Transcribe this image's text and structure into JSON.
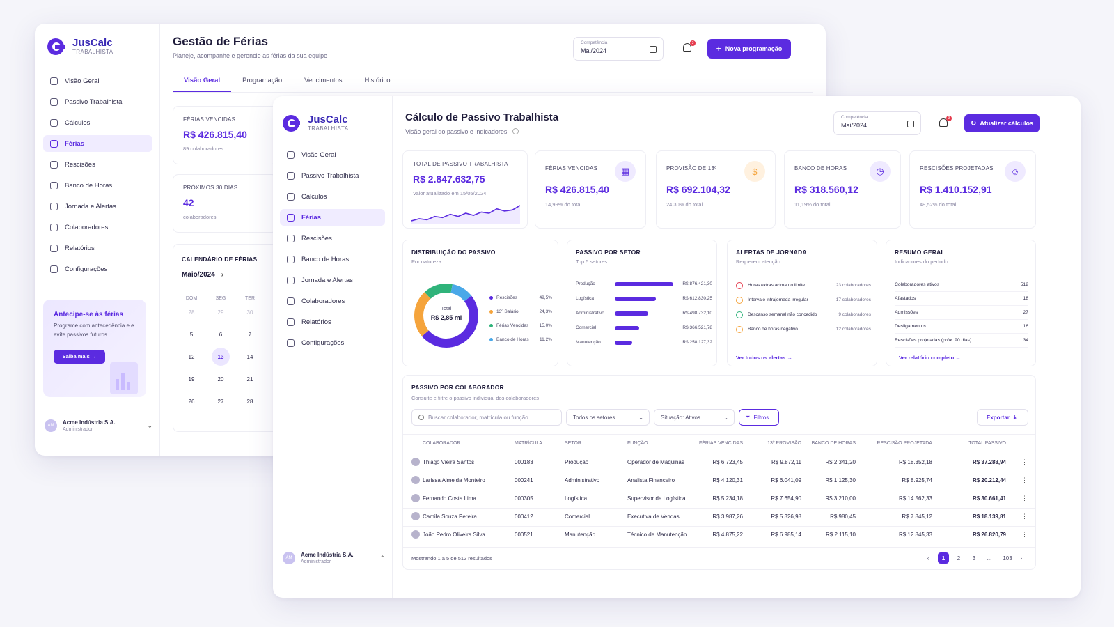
{
  "brand": {
    "name": "JusCalc",
    "sub": "TRABALHISTA"
  },
  "colors": {
    "accent": "#5b2be0",
    "orange": "#f5a43c",
    "green": "#2fb37a",
    "blue": "#4aa8e8",
    "red": "#e53a4c"
  },
  "back": {
    "nav": [
      "Visão Geral",
      "Passivo Trabalhista",
      "Cálculos",
      "Férias",
      "Rescisões",
      "Banco de Horas",
      "Jornada e Alertas",
      "Colaboradores",
      "Relatórios",
      "Configurações"
    ],
    "title": "Gestão de Férias",
    "subtitle": "Planeje, acompanhe e gerencie as férias da sua equipe",
    "competencia_label": "Competência",
    "competencia_value": "Mai/2024",
    "notif_count": "3",
    "new_button": "Nova programação",
    "tabs": [
      "Visão Geral",
      "Programação",
      "Vencimentos",
      "Histórico"
    ],
    "kpi1": {
      "label": "FÉRIAS VENCIDAS",
      "value": "R$ 426.815,40",
      "sub": "89 colaboradores"
    },
    "kpi2": {
      "label": "PRÓXIMOS 30 DIAS",
      "value": "42",
      "sub": "colaboradores"
    },
    "calendar": {
      "title": "CALENDÁRIO DE FÉRIAS",
      "month": "Maio/2024",
      "heads": [
        "DOM",
        "SEG",
        "TER"
      ],
      "rows": [
        [
          "28",
          "29",
          "30"
        ],
        [
          "5",
          "6",
          "7"
        ],
        [
          "12",
          "13",
          "14"
        ],
        [
          "19",
          "20",
          "21"
        ],
        [
          "26",
          "27",
          "28"
        ]
      ]
    },
    "promo": {
      "title": "Antecipe-se às férias",
      "text": "Programe com antecedência e e evite passivos futuros.",
      "button": "Saiba mais →"
    },
    "user": {
      "initials": "AM",
      "name": "Acme Indústria S.A.",
      "role": "Administrador"
    }
  },
  "front": {
    "nav": [
      "Visão Geral",
      "Passivo Trabalhista",
      "Cálculos",
      "Férias",
      "Rescisões",
      "Banco de Horas",
      "Jornada e Alertas",
      "Colaboradores",
      "Relatórios",
      "Configurações"
    ],
    "title": "Cálculo de Passivo Trabalhista",
    "subtitle": "Visão geral do passivo e indicadores",
    "competencia_label": "Competência",
    "competencia_value": "Mai/2024",
    "notif_count": "3",
    "update_button": "Atualizar cálculos",
    "total": {
      "label": "TOTAL DE PASSIVO TRABALHISTA",
      "value": "R$ 2.847.632,75",
      "sub": "Valor atualizado em 15/05/2024",
      "trend": [
        8,
        10,
        9,
        12,
        11,
        14,
        12,
        15,
        13,
        16,
        15,
        19,
        17,
        18,
        22
      ]
    },
    "kpis": [
      {
        "label": "FÉRIAS VENCIDAS",
        "value": "R$ 426.815,40",
        "sub": "14,99% do total",
        "icon": "calendar-icon",
        "glyph": "▦"
      },
      {
        "label": "PROVISÃO DE 13º",
        "value": "R$ 692.104,32",
        "sub": "24,30% do total",
        "icon": "dollar-icon",
        "glyph": "$"
      },
      {
        "label": "BANCO DE HORAS",
        "value": "R$ 318.560,12",
        "sub": "11,19% do total",
        "icon": "clock-icon",
        "glyph": "◷"
      },
      {
        "label": "RESCISÕES PROJETADAS",
        "value": "R$ 1.410.152,91",
        "sub": "49,52% do total",
        "icon": "users-icon",
        "glyph": "☺"
      }
    ],
    "distribution": {
      "title": "DISTRIBUIÇÃO DO PASSIVO",
      "sub": "Por natureza",
      "center_label": "Total",
      "center_value": "R$ 2,85 mi",
      "items": [
        {
          "name": "Rescisões",
          "pct": "49,5%",
          "value": 49.5,
          "color": "#5b2be0"
        },
        {
          "name": "13º Salário",
          "pct": "24,3%",
          "value": 24.3,
          "color": "#f5a43c"
        },
        {
          "name": "Férias Vencidas",
          "pct": "15,0%",
          "value": 15.0,
          "color": "#2fb37a"
        },
        {
          "name": "Banco de Horas",
          "pct": "11,2%",
          "value": 11.2,
          "color": "#4aa8e8"
        }
      ]
    },
    "sectors": {
      "title": "PASSIVO POR SETOR",
      "sub": "Top 5 setores",
      "items": [
        {
          "name": "Produção",
          "value": 876421.3,
          "label": "R$ 876.421,30"
        },
        {
          "name": "Logística",
          "value": 612830.25,
          "label": "R$ 612.830,25"
        },
        {
          "name": "Administrativo",
          "value": 498732.1,
          "label": "R$ 498.732,10"
        },
        {
          "name": "Comercial",
          "value": 366521.78,
          "label": "R$ 366.521,78"
        },
        {
          "name": "Manutenção",
          "value": 258127.32,
          "label": "R$ 258.127,32"
        }
      ]
    },
    "alerts": {
      "title": "ALERTAS DE JORNADA",
      "sub": "Requerem atenção",
      "items": [
        {
          "text": "Horas extras acima do limite",
          "count": "23 colaboradores",
          "color": "#e53a4c"
        },
        {
          "text": "Intervalo intrajornada irregular",
          "count": "17 colaboradores",
          "color": "#f5a43c"
        },
        {
          "text": "Descanso semanal não concedido",
          "count": "9 colaboradores",
          "color": "#2fb37a"
        },
        {
          "text": "Banco de horas negativo",
          "count": "12 colaboradores",
          "color": "#f5a43c"
        }
      ],
      "link": "Ver todos os alertas →"
    },
    "summary": {
      "title": "RESUMO GERAL",
      "sub": "Indicadores do período",
      "items": [
        {
          "name": "Colaboradores ativos",
          "value": "512"
        },
        {
          "name": "Afastados",
          "value": "18"
        },
        {
          "name": "Admissões",
          "value": "27"
        },
        {
          "name": "Desligamentos",
          "value": "16"
        },
        {
          "name": "Rescisões projetadas (próx. 90 dias)",
          "value": "34"
        }
      ],
      "link": "Ver relatório completo →"
    },
    "table": {
      "title": "PASSIVO POR COLABORADOR",
      "sub": "Consulte e filtre o passivo individual dos colaboradores",
      "search_placeholder": "Buscar colaborador, matrícula ou função...",
      "sector_filter": "Todos os setores",
      "status_filter": "Situação: Ativos",
      "filters_button": "Filtros",
      "export_button": "Exportar",
      "columns": [
        "COLABORADOR",
        "MATRÍCULA",
        "SETOR",
        "FUNÇÃO",
        "FÉRIAS VENCIDAS",
        "13º PROVISÃO",
        "BANCO DE HORAS",
        "RESCISÃO PROJETADA",
        "TOTAL PASSIVO"
      ],
      "rows": [
        [
          "Thiago Vieira Santos",
          "000183",
          "Produção",
          "Operador de Máquinas",
          "R$ 6.723,45",
          "R$ 9.872,11",
          "R$ 2.341,20",
          "R$ 18.352,18",
          "R$ 37.288,94"
        ],
        [
          "Larissa Almeida Monteiro",
          "000241",
          "Administrativo",
          "Analista Financeiro",
          "R$ 4.120,31",
          "R$ 6.041,09",
          "R$ 1.125,30",
          "R$ 8.925,74",
          "R$ 20.212,44"
        ],
        [
          "Fernando Costa Lima",
          "000305",
          "Logística",
          "Supervisor de Logística",
          "R$ 5.234,18",
          "R$ 7.654,90",
          "R$ 3.210,00",
          "R$ 14.562,33",
          "R$ 30.661,41"
        ],
        [
          "Camila Souza Pereira",
          "000412",
          "Comercial",
          "Executiva de Vendas",
          "R$ 3.987,26",
          "R$ 5.326,98",
          "R$ 980,45",
          "R$ 7.845,12",
          "R$ 18.139,81"
        ],
        [
          "João Pedro Oliveira Silva",
          "000521",
          "Manutenção",
          "Técnico de Manutenção",
          "R$ 4.875,22",
          "R$ 6.985,14",
          "R$ 2.115,10",
          "R$ 12.845,33",
          "R$ 26.820,79"
        ]
      ],
      "footer": "Mostrando 1 a 5 de 512 resultados",
      "pages": [
        "‹",
        "1",
        "2",
        "3",
        "...",
        "103",
        "›"
      ]
    },
    "user": {
      "initials": "AM",
      "name": "Acme Indústria S.A.",
      "role": "Administrador"
    }
  }
}
